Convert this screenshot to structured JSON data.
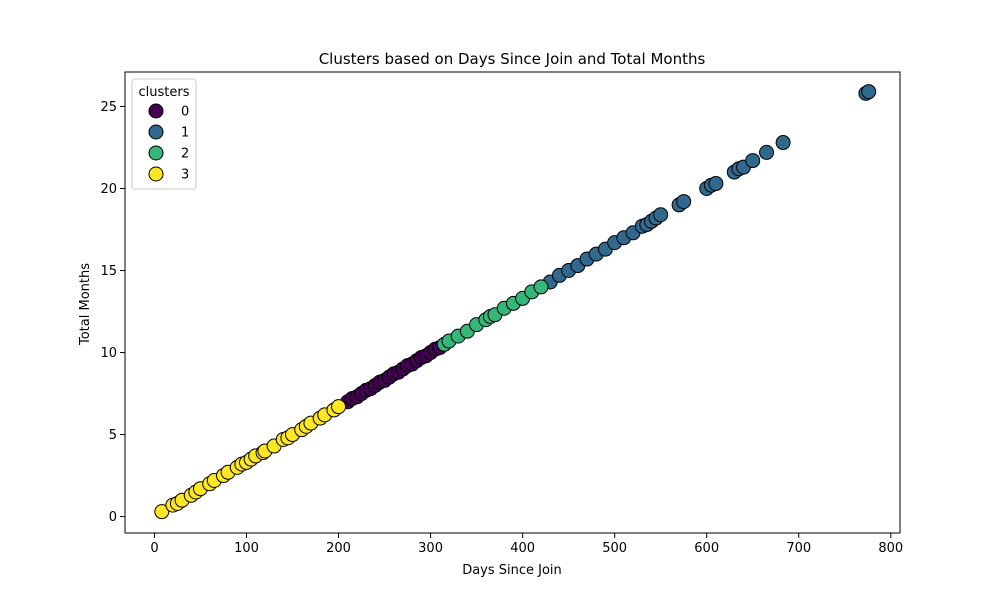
{
  "chart_data": {
    "type": "scatter",
    "title": "Clusters based on Days Since Join and Total Months",
    "xlabel": "Days Since Join",
    "ylabel": "Total Months",
    "xlim": [
      -32,
      810
    ],
    "ylim": [
      -1,
      27.1
    ],
    "xticks": [
      0,
      100,
      200,
      300,
      400,
      500,
      600,
      700,
      800
    ],
    "yticks": [
      0,
      5,
      10,
      15,
      20,
      25
    ],
    "grid": false,
    "legend": {
      "title": "clusters",
      "placement": "top-left"
    },
    "series": [
      {
        "name": "0",
        "color": "#440154",
        "x": [
          210,
          215,
          220,
          225,
          230,
          235,
          240,
          245,
          250,
          255,
          260,
          265,
          270,
          275,
          280,
          285,
          290,
          295,
          300,
          305,
          310
        ],
        "y": [
          7.0,
          7.2,
          7.3,
          7.5,
          7.7,
          7.8,
          8.0,
          8.2,
          8.3,
          8.5,
          8.7,
          8.8,
          9.0,
          9.2,
          9.3,
          9.5,
          9.7,
          9.8,
          10.0,
          10.2,
          10.3
        ]
      },
      {
        "name": "1",
        "color": "#31688e",
        "x": [
          430,
          440,
          450,
          460,
          470,
          480,
          490,
          500,
          510,
          520,
          530,
          535,
          540,
          545,
          550,
          570,
          575,
          600,
          605,
          610,
          630,
          635,
          640,
          650,
          665,
          683,
          773,
          776
        ],
        "y": [
          14.3,
          14.7,
          15.0,
          15.3,
          15.7,
          16.0,
          16.3,
          16.7,
          17.0,
          17.3,
          17.7,
          17.8,
          18.0,
          18.2,
          18.4,
          19.0,
          19.2,
          20.0,
          20.2,
          20.3,
          21.0,
          21.2,
          21.3,
          21.7,
          22.2,
          22.8,
          25.8,
          25.9
        ]
      },
      {
        "name": "2",
        "color": "#35b779",
        "x": [
          315,
          320,
          330,
          340,
          350,
          360,
          365,
          370,
          380,
          390,
          400,
          410,
          420
        ],
        "y": [
          10.5,
          10.7,
          11.0,
          11.3,
          11.7,
          12.0,
          12.2,
          12.3,
          12.7,
          13.0,
          13.3,
          13.7,
          14.0
        ]
      },
      {
        "name": "3",
        "color": "#fde725",
        "x": [
          8,
          20,
          25,
          30,
          40,
          45,
          50,
          60,
          65,
          75,
          80,
          90,
          95,
          100,
          105,
          110,
          118,
          120,
          130,
          140,
          145,
          150,
          160,
          165,
          170,
          180,
          185,
          195,
          200
        ],
        "y": [
          0.3,
          0.7,
          0.8,
          1.0,
          1.3,
          1.5,
          1.7,
          2.0,
          2.2,
          2.5,
          2.7,
          3.0,
          3.2,
          3.3,
          3.5,
          3.7,
          3.9,
          4.0,
          4.3,
          4.7,
          4.8,
          5.0,
          5.3,
          5.5,
          5.7,
          6.0,
          6.2,
          6.5,
          6.7
        ]
      }
    ]
  }
}
